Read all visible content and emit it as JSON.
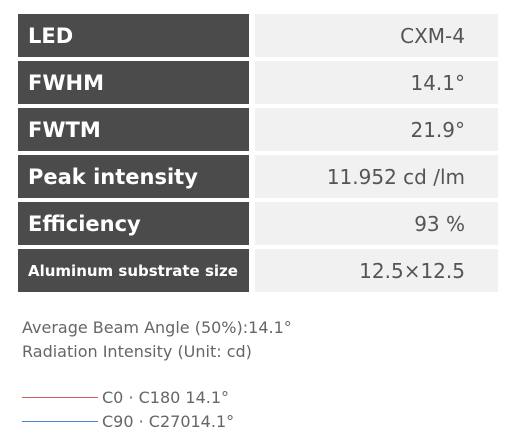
{
  "table": {
    "rows": [
      [
        "LED",
        "CXM-4"
      ],
      [
        "FWHM",
        "14.1°"
      ],
      [
        "FWTM",
        "21.9°"
      ],
      [
        "Peak intensity",
        "11.952 cd /lm"
      ],
      [
        "Efficiency",
        "93 %"
      ],
      [
        "Aluminum substrate size",
        "12.5×12.5"
      ]
    ]
  },
  "notes": [
    "Average Beam Angle (50%):14.1°",
    "Radiation Intensity (Unit: cd)"
  ],
  "legend": [
    "C0 · C180 14.1°",
    "C90 · C27014.1°"
  ]
}
